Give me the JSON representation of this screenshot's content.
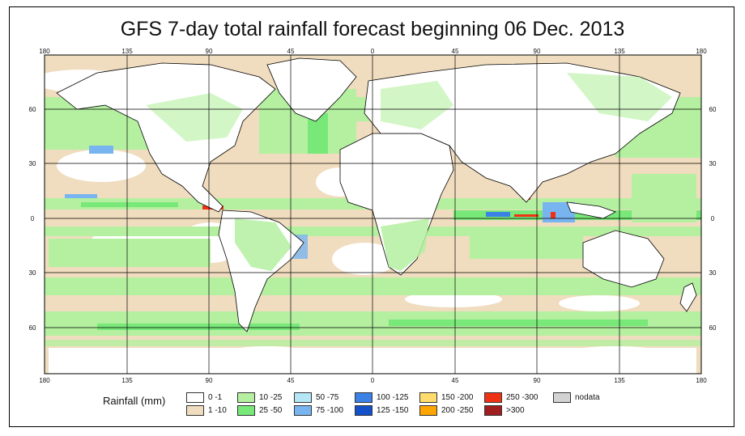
{
  "title": "GFS 7-day total rainfall forecast beginning 06 Dec. 2013",
  "lon_ticks_top": [
    "180",
    "135",
    "90",
    "45",
    "0",
    "45",
    "90",
    "135",
    "180"
  ],
  "lon_ticks_bottom": [
    "180",
    "135",
    "90",
    "45",
    "0",
    "45",
    "90",
    "135",
    "180"
  ],
  "lat_ticks_left": [
    "60",
    "30",
    "0",
    "30",
    "60"
  ],
  "lat_ticks_right": [
    "60",
    "30",
    "0",
    "30",
    "60"
  ],
  "legend": {
    "title": "Rainfall (mm)",
    "items": [
      {
        "label": "0 -1",
        "color": "#ffffff"
      },
      {
        "label": "1 -10",
        "color": "#f0dcbe"
      },
      {
        "label": "10 -25",
        "color": "#b4f0a0"
      },
      {
        "label": "25 -50",
        "color": "#78e878"
      },
      {
        "label": "50 -75",
        "color": "#b4e6f5"
      },
      {
        "label": "75 -100",
        "color": "#78b4f0"
      },
      {
        "label": "100 -125",
        "color": "#3c82e6"
      },
      {
        "label": "125 -150",
        "color": "#1450c8"
      },
      {
        "label": "150 -200",
        "color": "#ffdc6e"
      },
      {
        "label": "200 -250",
        "color": "#ffa500"
      },
      {
        "label": "250 -300",
        "color": "#f03214"
      },
      {
        "label": ">300",
        "color": "#a01e1e"
      },
      {
        "label": "nodata",
        "color": "#d2d2d2"
      }
    ]
  },
  "colors": {
    "ocean_base": "#f0dcbe",
    "light_green": "#b4f0a0",
    "green": "#78e878",
    "light_blue": "#b4e6f5",
    "blue": "#3c82e6",
    "red": "#f03214",
    "land": "#ffffff"
  }
}
